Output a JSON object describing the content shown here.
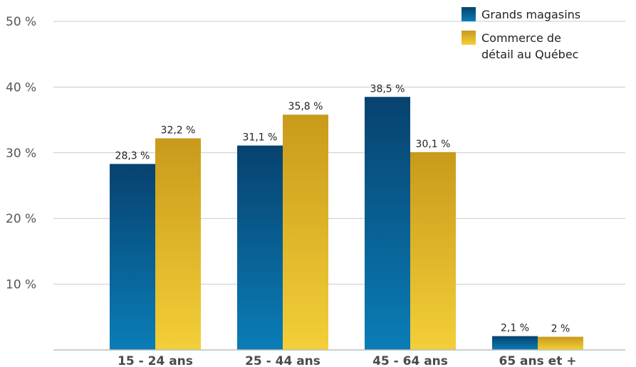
{
  "chart_data": {
    "type": "bar",
    "categories": [
      "15 - 24 ans",
      "25 - 44 ans",
      "45 - 64 ans",
      "65 ans et +"
    ],
    "series": [
      {
        "name": "Grands magasins",
        "values": [
          28.3,
          31.1,
          38.5,
          2.1
        ],
        "value_labels": [
          "28,3 %",
          "31,1 %",
          "38,5 %",
          "2,1 %"
        ],
        "color_top": "#07426f",
        "color_bottom": "#0a7db7"
      },
      {
        "name": "Commerce de détail au Québec",
        "name_lines": [
          "Commerce de",
          "détail au Québec"
        ],
        "values": [
          32.2,
          35.8,
          30.1,
          2.0
        ],
        "value_labels": [
          "32,2 %",
          "35,8 %",
          "30,1 %",
          "2 %"
        ],
        "color_top": "#c99a1b",
        "color_bottom": "#f3cf38"
      }
    ],
    "y_ticks": [
      10,
      20,
      30,
      40,
      50
    ],
    "y_tick_labels": [
      "10 %",
      "20 %",
      "30 %",
      "40 %",
      "50 %"
    ],
    "ylim": [
      0,
      50
    ],
    "grid": true,
    "legend_position": "top-right"
  }
}
